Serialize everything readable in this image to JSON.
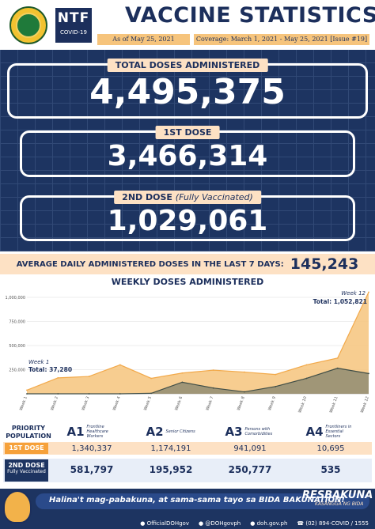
{
  "header": {
    "title": "VACCINE STATISTICS",
    "ntf_logo": "NTF",
    "ntf_sub": "COVID-19",
    "as_of": "As of May 25, 2021",
    "coverage": "Coverage: March 1, 2021 - May 25, 2021 [Issue #19]"
  },
  "totals": {
    "total_label": "TOTAL DOSES ADMINISTERED",
    "total_value": "4,495,375",
    "first_label": "1ST DOSE",
    "first_value": "3,466,314",
    "second_label": "2ND DOSE",
    "second_label_note": "(Fully Vaccinated)",
    "second_value": "1,029,061"
  },
  "average": {
    "label": "AVERAGE DAILY ADMINISTERED DOSES IN THE LAST 7 DAYS:",
    "value": "145,243"
  },
  "chart_data": {
    "type": "area",
    "title": "WEEKLY DOSES ADMINISTERED",
    "x": [
      "Week 1",
      "Week 2",
      "Week 3",
      "Week 4",
      "Week 5",
      "Week 6",
      "Week 7",
      "Week 8",
      "Week 9",
      "Week 10",
      "Week 11",
      "Week 12"
    ],
    "series": [
      {
        "values": [
          37280,
          165000,
          180000,
          300000,
          160000,
          215000,
          245000,
          225000,
          200000,
          300000,
          370000,
          1052821
        ],
        "color": "#f6c47c"
      },
      {
        "values": [
          0,
          0,
          0,
          0,
          5000,
          120000,
          60000,
          20000,
          75000,
          160000,
          265000,
          210000
        ],
        "color": "#5a6a62"
      }
    ],
    "ylim": [
      0,
      1000000
    ],
    "yticks": [
      "1,000,000",
      "750,000",
      "500,000",
      "250,000"
    ],
    "annotations": [
      {
        "week": "Week 1",
        "text": "Total: 37,280"
      },
      {
        "week": "Week 12",
        "text": "Total: 1,052,821"
      }
    ]
  },
  "priority": {
    "header_label": "PRIORITY POPULATION",
    "groups": [
      {
        "code": "A1",
        "desc": "Frontline Healthcare Workers"
      },
      {
        "code": "A2",
        "desc": "Senior Citizens"
      },
      {
        "code": "A3",
        "desc": "Persons with Comorbidities"
      },
      {
        "code": "A4",
        "desc": "Frontliners in Essential Sectors"
      }
    ],
    "first_dose_label": "1ST DOSE",
    "first_dose": [
      "1,340,337",
      "1,174,191",
      "941,091",
      "10,695"
    ],
    "second_dose_label": "2ND DOSE",
    "second_dose_note": "Fully Vaccinated",
    "second_dose": [
      "581,797",
      "195,952",
      "250,777",
      "535"
    ]
  },
  "footer": {
    "message": "Halina't mag-pabakuna, at sama-sama tayo sa BIDA BAKUNATION!",
    "resbakuna": "RESBAKUNA",
    "resbakuna_sub": "KASANGGA NG BIDA",
    "contacts": [
      "OfficialDOHgov",
      "@DOHgovph",
      "doh.gov.ph",
      "(02) 894-COVID / 1555"
    ]
  },
  "colors": {
    "navy": "#1c2f5c",
    "peach": "#fde1c4",
    "orange": "#f6c47c",
    "dark_green": "#5a6a62"
  }
}
